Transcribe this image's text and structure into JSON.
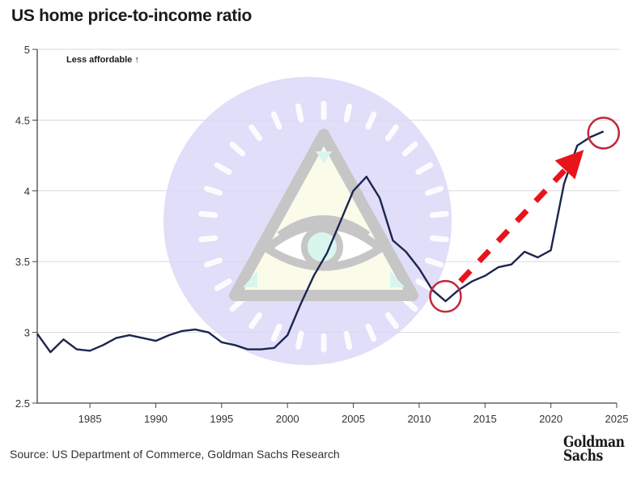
{
  "chart_data": {
    "type": "line",
    "title": "US home price-to-income ratio",
    "xlabel": "",
    "ylabel": "",
    "annotation": "Less affordable ↑",
    "source": "Source: US Department of Commerce, Goldman Sachs Research",
    "brand": [
      "Goldman",
      "Sachs"
    ],
    "xlim": [
      1981,
      2025
    ],
    "ylim": [
      2.5,
      5
    ],
    "x_ticks": [
      1985,
      1990,
      1995,
      2000,
      2005,
      2010,
      2015,
      2020,
      2025
    ],
    "y_ticks": [
      2.5,
      3,
      3.5,
      4,
      4.5,
      5
    ],
    "y_tick_labels": [
      "2.5",
      "3",
      "3.5",
      "4",
      "4.5",
      "5"
    ],
    "grid": "horizontal",
    "line_color": "#1c2550",
    "series": [
      {
        "name": "US home price-to-income ratio",
        "x": [
          1981,
          1982,
          1983,
          1984,
          1985,
          1986,
          1987,
          1988,
          1989,
          1990,
          1991,
          1992,
          1993,
          1994,
          1995,
          1996,
          1997,
          1998,
          1999,
          2000,
          2001,
          2002,
          2003,
          2004,
          2005,
          2006,
          2007,
          2008,
          2009,
          2010,
          2011,
          2012,
          2013,
          2014,
          2015,
          2016,
          2017,
          2018,
          2019,
          2020,
          2021,
          2022,
          2023,
          2024
        ],
        "values": [
          2.99,
          2.86,
          2.95,
          2.88,
          2.87,
          2.91,
          2.96,
          2.98,
          2.96,
          2.94,
          2.98,
          3.01,
          3.02,
          3.0,
          2.93,
          2.91,
          2.88,
          2.88,
          2.89,
          2.98,
          3.2,
          3.4,
          3.56,
          3.78,
          4.0,
          4.1,
          3.95,
          3.65,
          3.57,
          3.45,
          3.3,
          3.22,
          3.3,
          3.36,
          3.4,
          3.46,
          3.48,
          3.57,
          3.53,
          3.58,
          4.05,
          4.32,
          4.38,
          4.42
        ]
      }
    ],
    "overlay_annotations": {
      "circle_low": {
        "x": 2012,
        "y": 3.22,
        "color": "#c0283c"
      },
      "circle_high": {
        "x": 2024,
        "y": 4.42,
        "color": "#c0283c"
      },
      "dashed_arrow": {
        "from": [
          2013,
          3.36
        ],
        "to": [
          2022.5,
          4.29
        ],
        "color": "#e8141c"
      }
    },
    "watermark": "eye-of-providence-icon"
  }
}
